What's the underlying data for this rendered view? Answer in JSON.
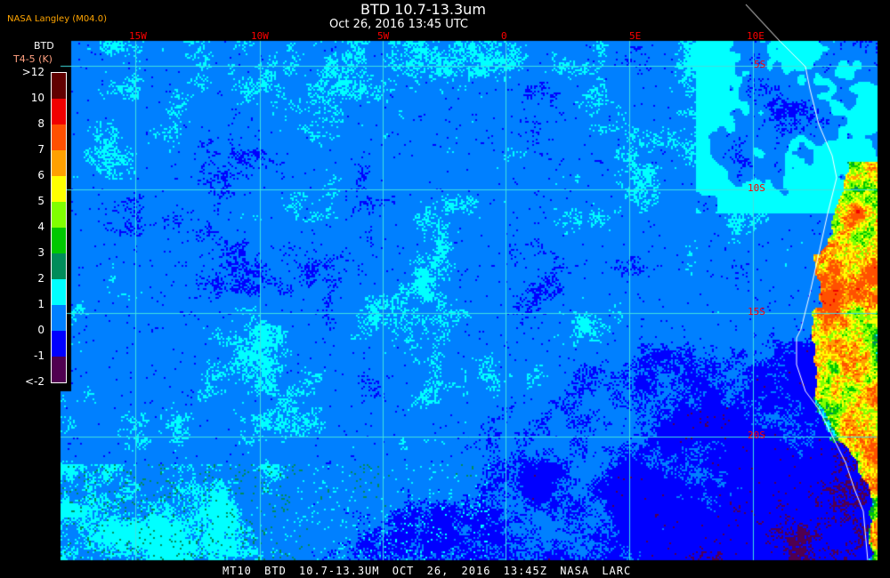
{
  "header": {
    "title": "BTD 10.7-13.3um",
    "subtitle": "Oct 26, 2016 13:45 UTC",
    "agency": "NASA Langley (M04.0)"
  },
  "legend": {
    "title": "BTD",
    "unit": "T4-5 (K)",
    "labels": [
      ">12",
      "10",
      "8",
      "7",
      "6",
      "5",
      "4",
      "3",
      "2",
      "1",
      "0",
      "-1",
      "<-2"
    ],
    "colors": [
      "#600000",
      "#f00000",
      "#ff5000",
      "#ffa000",
      "#ffff00",
      "#80ff00",
      "#00c800",
      "#008c5a",
      "#00ffff",
      "#0080ff",
      "#0000ff",
      "#500050"
    ]
  },
  "grid": {
    "longitudes": [
      "15W",
      "10W",
      "5W",
      "0",
      "5E",
      "10E"
    ],
    "latitudes": [
      "5S",
      "10S",
      "15S",
      "20S"
    ],
    "line_color": "#40e0e0",
    "label_color": "#ff0000",
    "coastline_color": "#ffffff"
  },
  "footer": "MT10  BTD 10.7-13.3UM   OCT 26, 2016 13:45Z   NASA LARC"
}
